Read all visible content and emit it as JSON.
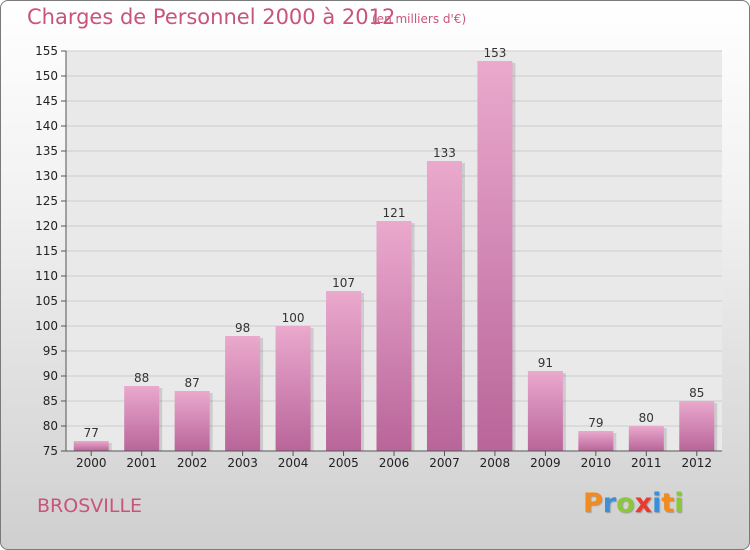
{
  "header": {
    "title": "Charges de Personnel 2000 à 2012",
    "unit": "(en milliers d'€)"
  },
  "footer": {
    "place": "BROSVILLE",
    "logo_letters": [
      "P",
      "r",
      "o",
      "x",
      "i",
      "t",
      "i"
    ],
    "logo_colors": [
      "#f28a1e",
      "#3a8fd8",
      "#8cc63f",
      "#e63b2e",
      "#3a8fd8",
      "#f28a1e",
      "#8cc63f"
    ]
  },
  "colors": {
    "title": "#c8547d",
    "bar_light": "#eaa9cd",
    "bar_dark": "#b9659a"
  },
  "chart_data": {
    "type": "bar",
    "title": "Charges de Personnel 2000 à 2012",
    "categories": [
      "2000",
      "2001",
      "2002",
      "2003",
      "2004",
      "2005",
      "2006",
      "2007",
      "2008",
      "2009",
      "2010",
      "2011",
      "2012"
    ],
    "values": [
      77,
      88,
      87,
      98,
      100,
      107,
      121,
      133,
      153,
      91,
      79,
      80,
      85
    ],
    "ylim": [
      75,
      155
    ],
    "yticks": [
      75,
      80,
      85,
      90,
      95,
      100,
      105,
      110,
      115,
      120,
      125,
      130,
      135,
      140,
      145,
      150,
      155
    ],
    "grid": true,
    "xlabel": "",
    "ylabel": ""
  }
}
